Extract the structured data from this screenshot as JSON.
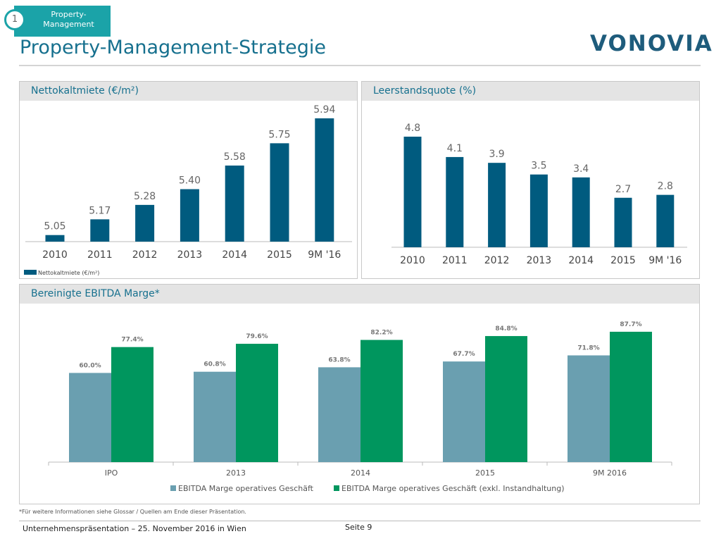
{
  "section": {
    "number": "1",
    "label": "Property-\nManagement"
  },
  "title": "Property-Management-Strategie",
  "logo": "VONOVIA",
  "colors": {
    "primary": "#005b7f",
    "ebitda_blue": "#6a9fb0",
    "ebitda_green": "#00965e",
    "accent": "#1ba3a8"
  },
  "chart_data": [
    {
      "type": "bar",
      "title": "Nettokaltmiete (€/m²)",
      "categories": [
        "2010",
        "2011",
        "2012",
        "2013",
        "2014",
        "2015",
        "9M '16"
      ],
      "series": [
        {
          "name": "Nettokaltmiete (€/m²)",
          "values": [
            5.05,
            5.17,
            5.28,
            5.4,
            5.58,
            5.75,
            5.94
          ],
          "labels": [
            "5.05",
            "5.17",
            "5.28",
            "5.40",
            "5.58",
            "5.75",
            "5.94"
          ]
        }
      ],
      "ylim": [
        5.0,
        5.94
      ],
      "legend": "bottom-left",
      "grid": false
    },
    {
      "type": "bar",
      "title": "Leerstandsquote (%)",
      "categories": [
        "2010",
        "2011",
        "2012",
        "2013",
        "2014",
        "2015",
        "9M '16"
      ],
      "series": [
        {
          "values": [
            4.8,
            4.1,
            3.9,
            3.5,
            3.4,
            2.7,
            2.8
          ],
          "labels": [
            "4.8",
            "4.1",
            "3.9",
            "3.5",
            "3.4",
            "2.7",
            "2.8"
          ]
        }
      ],
      "ylim": [
        1.0,
        4.8
      ],
      "grid": false
    },
    {
      "type": "bar",
      "title": "Bereinigte EBITDA Marge*",
      "categories": [
        "IPO",
        "2013",
        "2014",
        "2015",
        "9M 2016"
      ],
      "series": [
        {
          "name": "EBITDA Marge operatives Geschäft",
          "values": [
            60.0,
            60.8,
            63.8,
            67.7,
            71.8
          ],
          "labels": [
            "60.0%",
            "60.8%",
            "63.8%",
            "67.7%",
            "71.8%"
          ]
        },
        {
          "name": "EBITDA Marge operatives Geschäft (exkl. Instandhaltung)",
          "values": [
            77.4,
            79.6,
            82.2,
            84.8,
            87.7
          ],
          "labels": [
            "77.4%",
            "79.6%",
            "82.2%",
            "84.8%",
            "87.7%"
          ]
        }
      ],
      "ylim": [
        0,
        100
      ],
      "legend": "bottom",
      "grid": false
    }
  ],
  "footnote": "*Für weitere Informationen siehe Glossar / Quellen am Ende dieser Präsentation.",
  "footer": "Unternehmenspräsentation – 25. November 2016 in Wien",
  "page": "Seite 9"
}
